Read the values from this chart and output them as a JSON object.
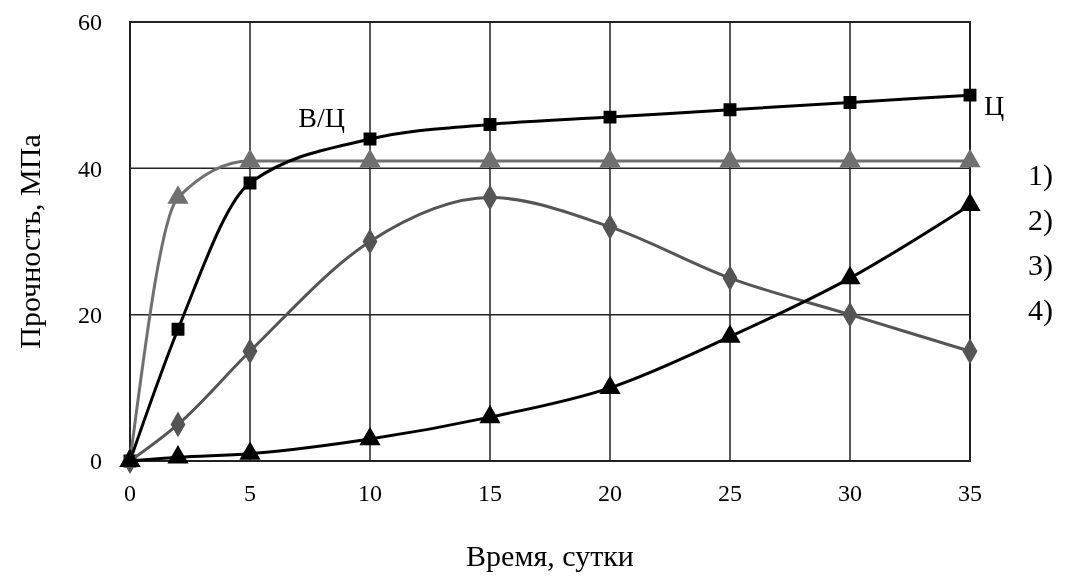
{
  "chart_data": {
    "type": "line",
    "xlabel": "Время, сутки",
    "ylabel": "Прочность, МПа",
    "x": [
      0,
      2,
      5,
      10,
      15,
      20,
      25,
      30,
      35
    ],
    "xlim": [
      0,
      35
    ],
    "xticks": [
      0,
      5,
      10,
      15,
      20,
      25,
      30,
      35
    ],
    "ylim": [
      0,
      60
    ],
    "yticks": [
      0,
      20,
      40,
      60
    ],
    "grid": true,
    "line_style": "solid",
    "series": [
      {
        "color": "#707070",
        "marker": "triangle",
        "values": [
          0,
          36,
          41,
          41,
          41,
          41,
          41,
          41,
          41
        ]
      },
      {
        "color": "#000000",
        "marker": "square",
        "values": [
          0,
          18,
          38,
          44,
          46,
          47,
          48,
          49,
          50
        ]
      },
      {
        "color": "#555555",
        "marker": "diamond",
        "values": [
          0,
          5,
          15,
          30,
          36,
          32,
          25,
          20,
          15
        ]
      },
      {
        "color": "#000000",
        "marker": "triangle",
        "values": [
          0,
          0.5,
          1,
          3,
          6,
          10,
          17,
          25,
          35
        ]
      }
    ],
    "annotations": [
      {
        "text": "В/Ц",
        "x": 10,
        "y": 44
      },
      {
        "text": "Ц",
        "x": 35,
        "y": 50
      },
      "1)",
      "2)",
      "3)",
      "4)"
    ]
  }
}
